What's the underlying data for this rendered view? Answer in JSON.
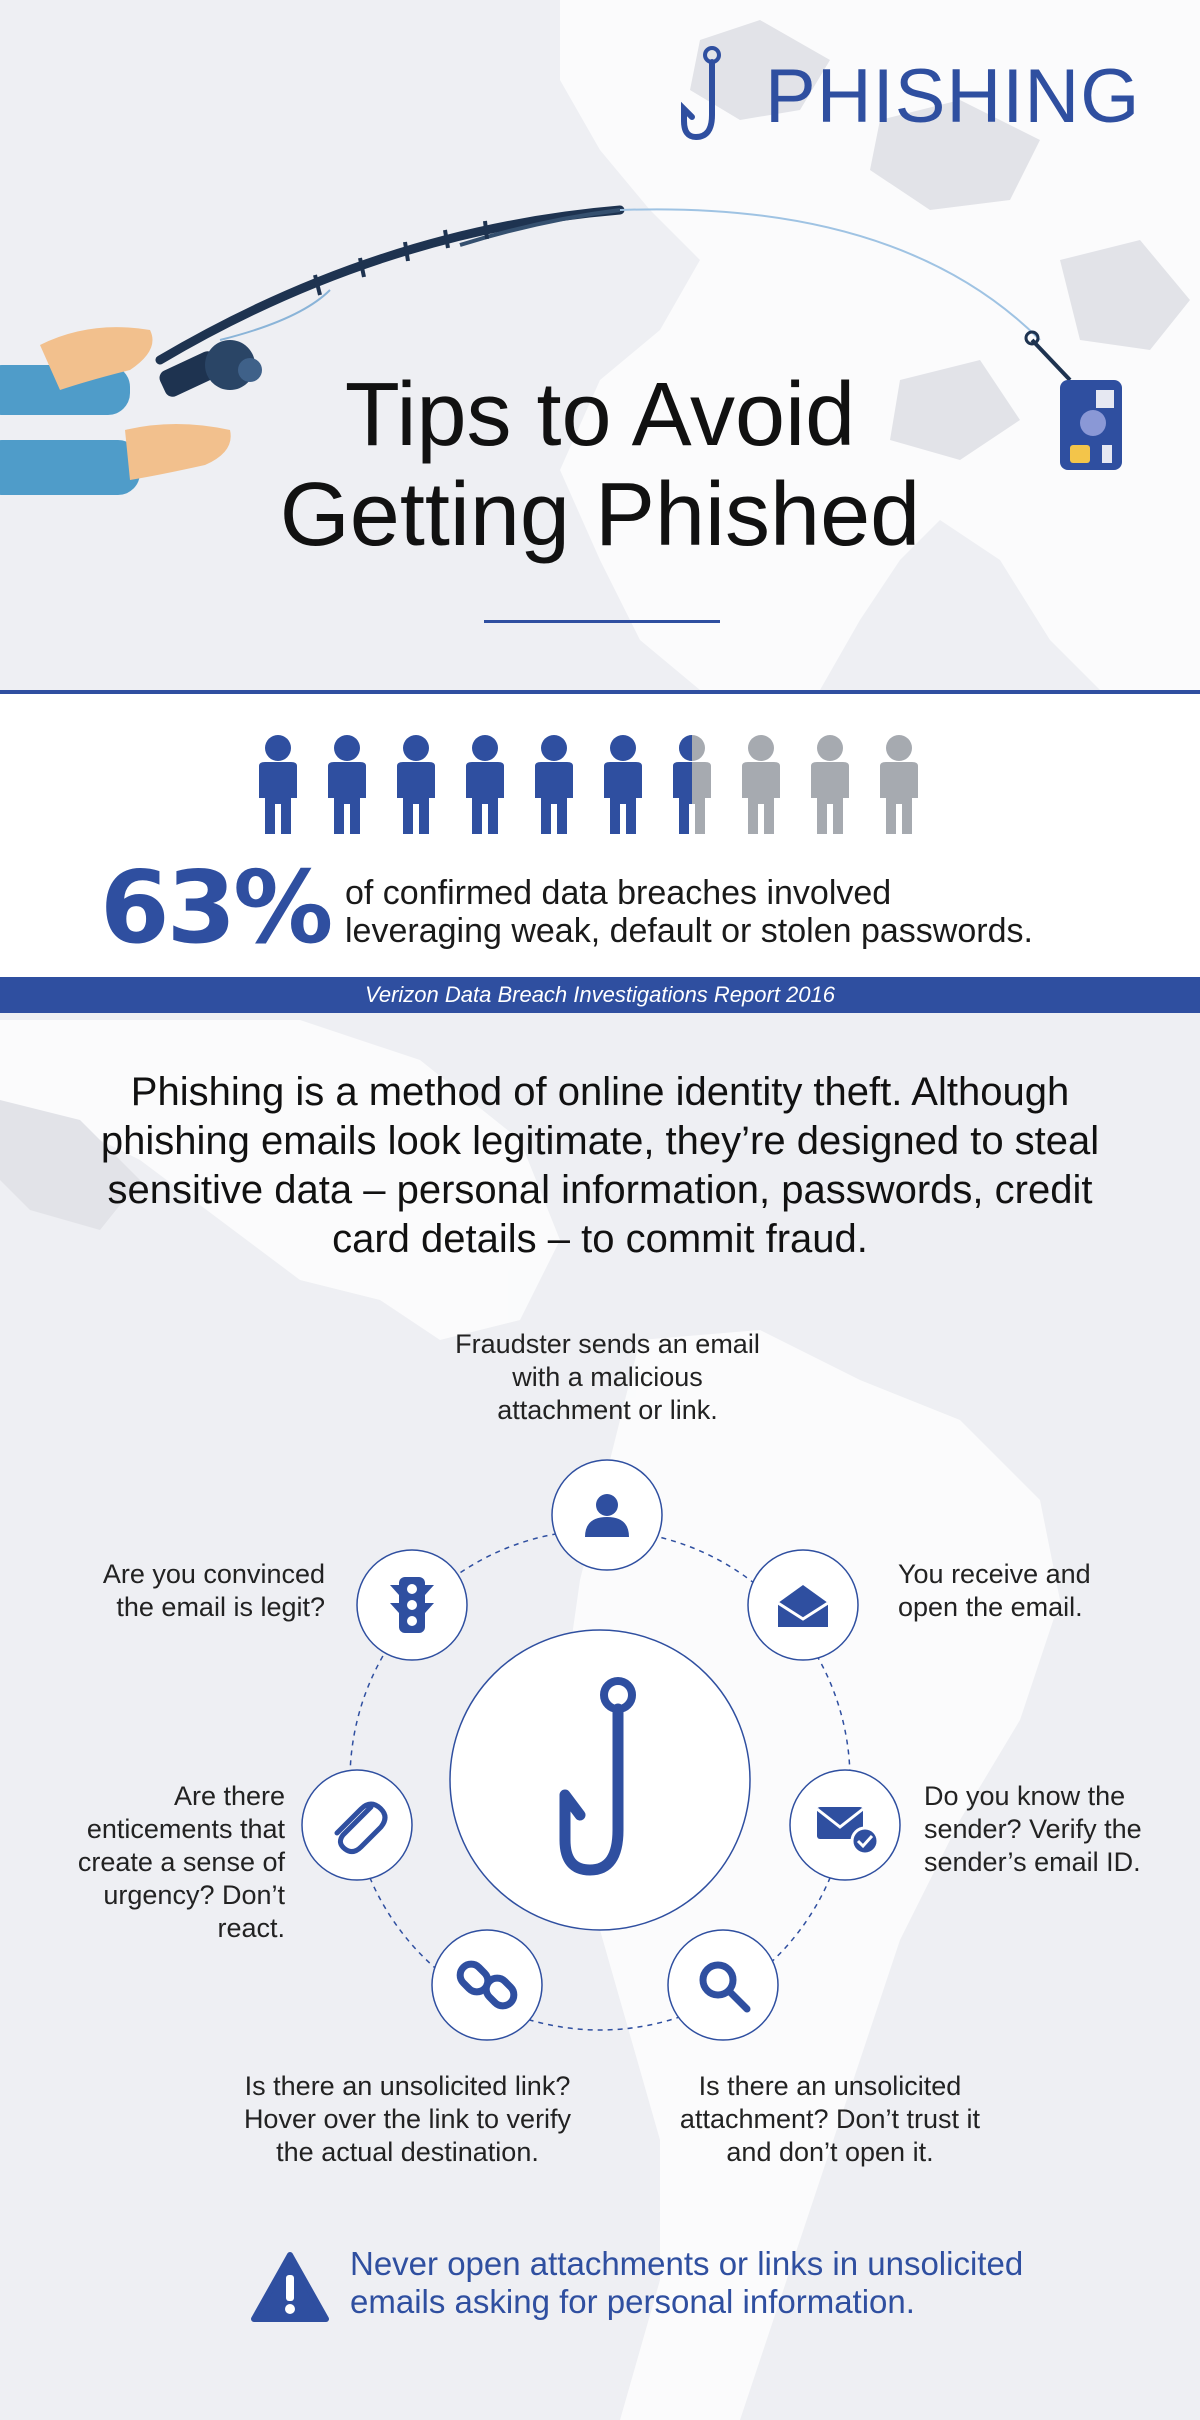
{
  "header": {
    "brand_title": "PHISHING",
    "hero_title_line1": "Tips to Avoid",
    "hero_title_line2": "Getting Phished"
  },
  "stat": {
    "value": "63%",
    "people_filled_fraction": 0.65,
    "people_count": 10,
    "text_line1": "of confirmed data breaches involved",
    "text_line2": "leveraging weak, default or stolen passwords.",
    "source": "Verizon Data Breach Investigations Report 2016"
  },
  "intro": "Phishing is a method of online identity theft. Although phishing emails look legitimate, they’re designed to steal sensitive data – personal information, passwords, credit card details – to commit fraud.",
  "cycle": {
    "center_icon": "hook-icon",
    "steps": [
      {
        "icon": "user-icon",
        "text": "Fraudster sends an email with a malicious attachment or link."
      },
      {
        "icon": "open-envelope-icon",
        "text": "You receive and open the email."
      },
      {
        "icon": "envelope-check-icon",
        "text": "Do you know the sender? Verify the sender’s email ID."
      },
      {
        "icon": "search-icon",
        "text": "Is there an unsolicited attachment? Don’t trust it and don’t open it."
      },
      {
        "icon": "link-icon",
        "text": "Is there an unsolicited link? Hover over the link to verify the actual destination."
      },
      {
        "icon": "paperclip-icon",
        "text": "Are there enticements that create a sense of urgency? Don’t react."
      },
      {
        "icon": "traffic-light-icon",
        "text": "Are you convinced the email is legit?"
      }
    ]
  },
  "warning": {
    "icon": "warning-icon",
    "text": "Never open attachments or links in unsolicited emails asking for personal information."
  },
  "colors": {
    "brand_blue": "#2f4fa0",
    "people_grey": "#a6aab0",
    "map_grey": "#e2e3e8",
    "background": "#eeeff3"
  }
}
